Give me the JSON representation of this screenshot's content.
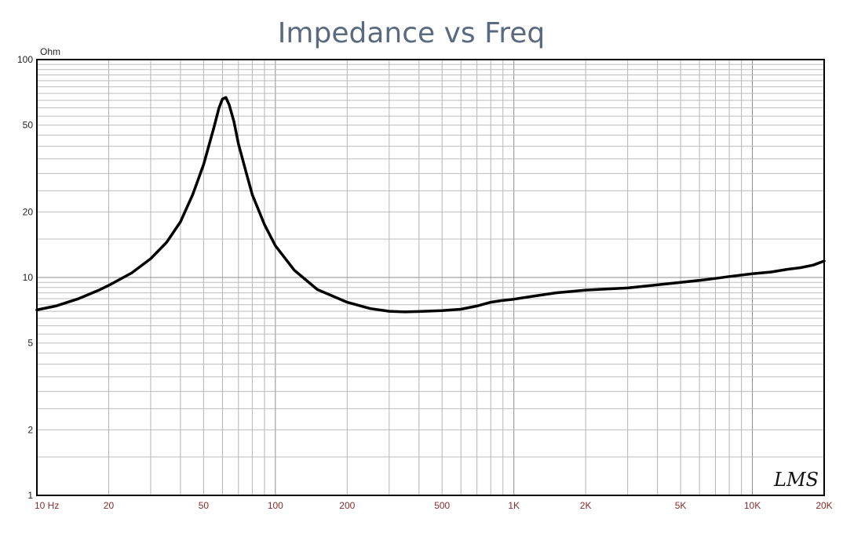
{
  "chart_data": {
    "type": "line",
    "title": "Impedance vs Freq",
    "y_unit_label": "Ohm",
    "x_scale": "log",
    "y_scale": "log",
    "xlim": [
      10,
      20000
    ],
    "ylim": [
      1,
      100
    ],
    "grid": true,
    "x_tick_labels": [
      {
        "value": 10,
        "label": "10 Hz"
      },
      {
        "value": 20,
        "label": "20"
      },
      {
        "value": 50,
        "label": "50"
      },
      {
        "value": 100,
        "label": "100"
      },
      {
        "value": 200,
        "label": "200"
      },
      {
        "value": 500,
        "label": "500"
      },
      {
        "value": 1000,
        "label": "1K"
      },
      {
        "value": 2000,
        "label": "2K"
      },
      {
        "value": 5000,
        "label": "5K"
      },
      {
        "value": 10000,
        "label": "10K"
      },
      {
        "value": 20000,
        "label": "20K"
      }
    ],
    "y_tick_labels": [
      {
        "value": 100,
        "label": "100"
      },
      {
        "value": 50,
        "label": "50"
      },
      {
        "value": 20,
        "label": "20"
      },
      {
        "value": 10,
        "label": "10"
      },
      {
        "value": 5,
        "label": "5"
      },
      {
        "value": 2,
        "label": "2"
      },
      {
        "value": 1,
        "label": "1"
      }
    ],
    "series": [
      {
        "color": "#000000",
        "points": [
          [
            10,
            7.1
          ],
          [
            12,
            7.4
          ],
          [
            15,
            8.0
          ],
          [
            18,
            8.7
          ],
          [
            20,
            9.2
          ],
          [
            25,
            10.5
          ],
          [
            30,
            12.2
          ],
          [
            35,
            14.5
          ],
          [
            40,
            18.0
          ],
          [
            45,
            24.0
          ],
          [
            50,
            33.0
          ],
          [
            55,
            48.0
          ],
          [
            58,
            60.0
          ],
          [
            60,
            66.0
          ],
          [
            62,
            67.0
          ],
          [
            64,
            62.0
          ],
          [
            67,
            52.0
          ],
          [
            70,
            41.0
          ],
          [
            75,
            31.0
          ],
          [
            80,
            24.0
          ],
          [
            90,
            17.5
          ],
          [
            100,
            14.0
          ],
          [
            120,
            10.8
          ],
          [
            150,
            8.8
          ],
          [
            200,
            7.7
          ],
          [
            250,
            7.2
          ],
          [
            300,
            7.0
          ],
          [
            350,
            6.95
          ],
          [
            400,
            6.98
          ],
          [
            500,
            7.05
          ],
          [
            600,
            7.15
          ],
          [
            700,
            7.4
          ],
          [
            800,
            7.7
          ],
          [
            900,
            7.85
          ],
          [
            1000,
            7.95
          ],
          [
            1200,
            8.2
          ],
          [
            1500,
            8.5
          ],
          [
            2000,
            8.75
          ],
          [
            3000,
            8.95
          ],
          [
            4000,
            9.25
          ],
          [
            5000,
            9.5
          ],
          [
            6000,
            9.7
          ],
          [
            7000,
            9.9
          ],
          [
            8000,
            10.1
          ],
          [
            10000,
            10.4
          ],
          [
            12000,
            10.6
          ],
          [
            14000,
            10.9
          ],
          [
            16000,
            11.1
          ],
          [
            18000,
            11.4
          ],
          [
            20000,
            11.9
          ]
        ]
      }
    ]
  },
  "watermark": "LMS"
}
